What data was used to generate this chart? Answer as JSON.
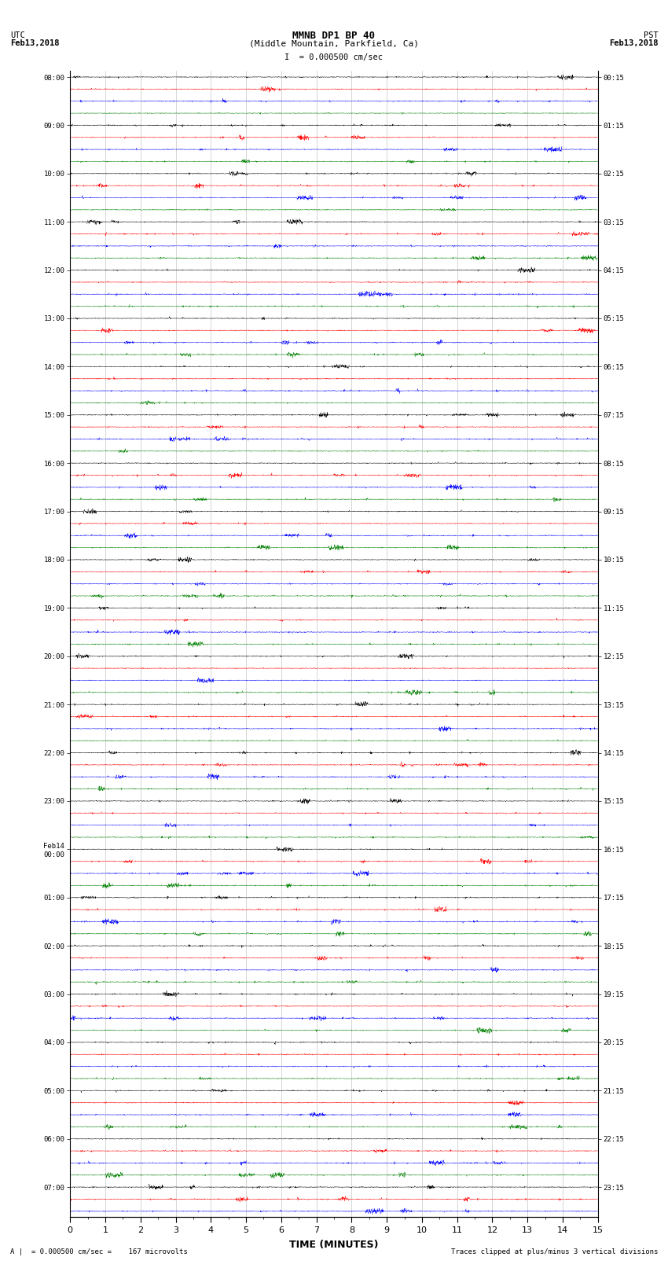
{
  "title_line1": "MMNB DP1 BP 40",
  "title_line2": "(Middle Mountain, Parkfield, Ca)",
  "scale_label": "I  = 0.000500 cm/sec",
  "left_label_top": "UTC",
  "left_label_date": "Feb13,2018",
  "right_label_top": "PST",
  "right_label_date": "Feb13,2018",
  "xlabel": "TIME (MINUTES)",
  "footer_left": "A |  = 0.000500 cm/sec =    167 microvolts",
  "footer_right": "Traces clipped at plus/minus 3 vertical divisions",
  "xlim": [
    0,
    15
  ],
  "xticks": [
    0,
    1,
    2,
    3,
    4,
    5,
    6,
    7,
    8,
    9,
    10,
    11,
    12,
    13,
    14,
    15
  ],
  "colors": [
    "black",
    "red",
    "blue",
    "green"
  ],
  "utc_labels": [
    "08:00",
    "09:00",
    "10:00",
    "11:00",
    "12:00",
    "13:00",
    "14:00",
    "15:00",
    "16:00",
    "17:00",
    "18:00",
    "19:00",
    "20:00",
    "21:00",
    "22:00",
    "23:00",
    "Feb14\n00:00",
    "01:00",
    "02:00",
    "03:00",
    "04:00",
    "05:00",
    "06:00",
    "07:00"
  ],
  "pst_labels": [
    "00:15",
    "01:15",
    "02:15",
    "03:15",
    "04:15",
    "05:15",
    "06:15",
    "07:15",
    "08:15",
    "09:15",
    "10:15",
    "11:15",
    "12:15",
    "13:15",
    "14:15",
    "15:15",
    "16:15",
    "17:15",
    "18:15",
    "19:15",
    "20:15",
    "21:15",
    "22:15",
    "23:15"
  ],
  "num_groups": 24,
  "traces_per_group": 4,
  "total_rows": 95,
  "amplitude": 0.1,
  "noise_base": 0.018,
  "noise_seed": 42,
  "background_color": "white",
  "line_width": 0.3,
  "grid_color": "#888888",
  "grid_linewidth": 0.4
}
